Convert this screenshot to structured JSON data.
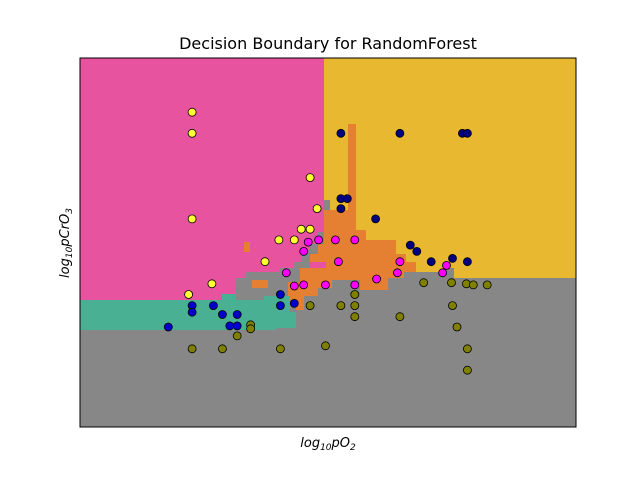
{
  "chart_data": {
    "type": "scatter",
    "title": "Decision Boundary for RandomForest",
    "xlabel_base": "log",
    "xlabel_sub": "10",
    "xlabel_rest": "pO",
    "xlabel_sub2": "2",
    "ylabel_base": "log",
    "ylabel_sub": "10",
    "ylabel_rest": "pCrO",
    "ylabel_sub2": "3",
    "xlim": [
      0,
      100
    ],
    "ylim": [
      0,
      100
    ],
    "ticks_shown": false,
    "grid": false,
    "legend": "none",
    "region_colors": {
      "pink": "#e853a0",
      "gold": "#e8b930",
      "orange": "#e57f32",
      "teal": "#4ab094",
      "gray": "#878787"
    },
    "series": [
      {
        "color": "#ffff33",
        "points": [
          [
            22.6,
            85.3
          ],
          [
            22.6,
            79.6
          ],
          [
            46.4,
            67.6
          ],
          [
            47.8,
            59.2
          ],
          [
            22.6,
            56.4
          ],
          [
            44.6,
            53.6
          ],
          [
            46.4,
            53.6
          ],
          [
            40.1,
            50.7
          ],
          [
            43.2,
            50.7
          ],
          [
            37.3,
            44.8
          ],
          [
            26.6,
            38.8
          ],
          [
            21.9,
            35.9
          ]
        ]
      },
      {
        "color": "#000080",
        "points": [
          [
            52.6,
            79.6
          ],
          [
            64.5,
            79.6
          ],
          [
            77.1,
            79.6
          ],
          [
            78.1,
            79.6
          ],
          [
            52.6,
            61.9
          ],
          [
            53.9,
            61.9
          ],
          [
            52.6,
            59.2
          ],
          [
            59.6,
            56.4
          ],
          [
            66.6,
            49.3
          ],
          [
            67.9,
            47.6
          ],
          [
            70.8,
            44.8
          ],
          [
            75.1,
            45.7
          ],
          [
            78.1,
            44.8
          ]
        ]
      },
      {
        "color": "#ff00ff",
        "points": [
          [
            46.0,
            50.1
          ],
          [
            48.1,
            50.7
          ],
          [
            51.5,
            50.7
          ],
          [
            55.4,
            50.7
          ],
          [
            45.1,
            47.6
          ],
          [
            52.1,
            44.8
          ],
          [
            64.5,
            44.8
          ],
          [
            41.6,
            41.8
          ],
          [
            73.9,
            43.8
          ],
          [
            64.0,
            41.8
          ],
          [
            59.8,
            40.1
          ],
          [
            43.2,
            38.2
          ],
          [
            45.1,
            38.5
          ],
          [
            49.5,
            38.5
          ],
          [
            55.4,
            38.5
          ],
          [
            73.1,
            41.8
          ]
        ]
      },
      {
        "color": "#0000cd",
        "points": [
          [
            40.4,
            35.9
          ],
          [
            22.6,
            32.9
          ],
          [
            26.9,
            32.9
          ],
          [
            40.4,
            32.9
          ],
          [
            43.2,
            33.5
          ],
          [
            22.6,
            31.1
          ],
          [
            28.7,
            30.5
          ],
          [
            31.7,
            30.5
          ],
          [
            17.8,
            27.1
          ],
          [
            30.2,
            27.4
          ],
          [
            31.7,
            27.4
          ]
        ]
      },
      {
        "color": "#808000",
        "points": [
          [
            69.3,
            39.1
          ],
          [
            74.9,
            39.1
          ],
          [
            77.9,
            38.8
          ],
          [
            79.3,
            38.5
          ],
          [
            82.1,
            38.5
          ],
          [
            55.4,
            35.9
          ],
          [
            46.4,
            32.9
          ],
          [
            52.6,
            32.9
          ],
          [
            55.4,
            32.9
          ],
          [
            75.1,
            32.9
          ],
          [
            55.4,
            29.9
          ],
          [
            64.5,
            29.9
          ],
          [
            34.4,
            27.7
          ],
          [
            34.4,
            26.6
          ],
          [
            31.7,
            24.7
          ],
          [
            76.0,
            27.1
          ],
          [
            22.6,
            21.2
          ],
          [
            28.7,
            21.2
          ],
          [
            40.4,
            21.2
          ],
          [
            49.5,
            22.0
          ],
          [
            78.1,
            21.2
          ],
          [
            78.1,
            15.4
          ]
        ]
      }
    ]
  }
}
